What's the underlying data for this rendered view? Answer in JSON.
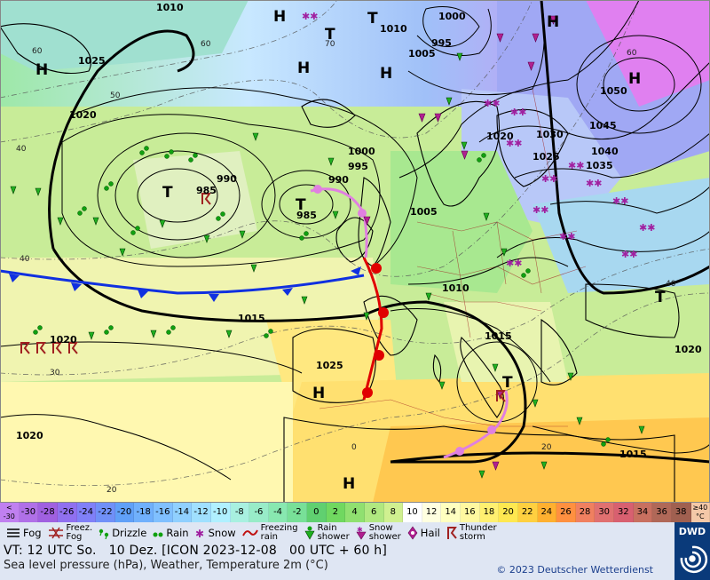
{
  "map": {
    "pressure_labels": [
      "1010",
      "1025",
      "1020",
      "1020",
      "1020",
      "1015",
      "1025",
      "1000",
      "995",
      "990",
      "985",
      "985",
      "990",
      "1000",
      "995",
      "1005",
      "1005",
      "1010",
      "1015",
      "1010",
      "1010",
      "995",
      "1020",
      "1030",
      "1025",
      "1040",
      "1035",
      "1045",
      "1050",
      "1020",
      "1015"
    ],
    "centers": {
      "H": "H",
      "T": "T"
    },
    "thickness_labels": [
      "60",
      "50",
      "40",
      "60",
      "70",
      "40",
      "30",
      "20",
      "0",
      "20",
      "60",
      "40"
    ]
  },
  "scale": {
    "values": [
      "<\n-30",
      "-30",
      "-28",
      "-26",
      "-24",
      "-22",
      "-20",
      "-18",
      "-16",
      "-14",
      "-12",
      "-10",
      "-8",
      "-6",
      "-4",
      "-2",
      "0",
      "2",
      "4",
      "6",
      "8",
      "10",
      "12",
      "14",
      "16",
      "18",
      "20",
      "22",
      "24",
      "26",
      "28",
      "30",
      "32",
      "34",
      "36",
      "38",
      "≥40\n°C"
    ],
    "colors": [
      "#c080f0",
      "#b070e8",
      "#a060e0",
      "#9070f0",
      "#8080f8",
      "#7090f8",
      "#60a0f8",
      "#70b0fc",
      "#80c0ff",
      "#90d0ff",
      "#a0e0ff",
      "#b0f0ff",
      "#a8f0e0",
      "#98ecc8",
      "#88e8b0",
      "#78e098",
      "#60d070",
      "#70d860",
      "#90e070",
      "#b0e880",
      "#d0f090",
      "#ffffff",
      "#ffffe0",
      "#ffffc0",
      "#fff8a0",
      "#fff070",
      "#ffe850",
      "#ffd040",
      "#ffb030",
      "#ff9040",
      "#f08060",
      "#e07070",
      "#d86070",
      "#c87060",
      "#b06858",
      "#a06050",
      "#f4c8a8"
    ]
  },
  "legend": {
    "fog": "Fog",
    "freezing_fog": "Freez.\nFog",
    "drizzle": "Drizzle",
    "rain": "Rain",
    "snow": "Snow",
    "freezing_rain": "Freezing\nrain",
    "rain_shower": "Rain\nshower",
    "snow_shower": "Snow\nshower",
    "hail": "Hail",
    "thunderstorm": "Thunder\nstorm"
  },
  "info": {
    "valid_time": "VT: 12 UTC So.   10 Dez. [ICON 2023-12-08   00 UTC + 60 h]",
    "description": "Sea level pressure (hPa), Weather, Temperature 2m (°C)",
    "copyright": "© 2023 Deutscher Wetterdienst"
  },
  "logo": {
    "text": "DWD"
  },
  "colors": {
    "cold_front": "#1030e0",
    "warm_front": "#e00000",
    "occlusion": "#e080e0",
    "isobar": "#000000",
    "legend_bg": "#dfe6f3",
    "logo_bg": "#0a3a7a"
  }
}
